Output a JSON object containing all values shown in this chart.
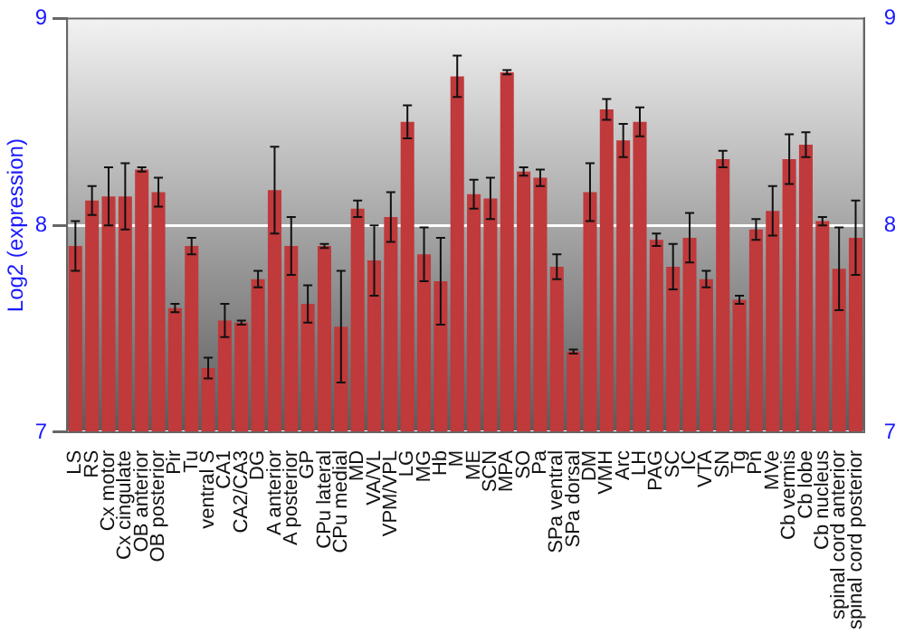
{
  "chart_data": {
    "type": "bar",
    "ylabel": "Log2 (expression)",
    "categories": [
      "LS",
      "RS",
      "Cx motor",
      "Cx cingulate",
      "OB anterior",
      "OB posterior",
      "Pir",
      "Tu",
      "ventral S",
      "CA1",
      "CA2/CA3",
      "DG",
      "A anterior",
      "A posterior",
      "GP",
      "CPu lateral",
      "CPu medial",
      "MD",
      "VA/VL",
      "VPM/VPL",
      "LG",
      "MG",
      "Hb",
      "M",
      "ME",
      "SCN",
      "MPA",
      "SO",
      "Pa",
      "SPa ventral",
      "SPa dorsal",
      "DM",
      "VMH",
      "Arc",
      "LH",
      "PAG",
      "SC",
      "IC",
      "VTA",
      "SN",
      "Tg",
      "Pn",
      "MVe",
      "Cb vermis",
      "Cb lobe",
      "Cb nucleus",
      "spinal cord anterior",
      "spinal cord posterior"
    ],
    "values": [
      7.9,
      8.12,
      8.14,
      8.14,
      8.27,
      8.16,
      7.6,
      7.9,
      7.31,
      7.54,
      7.53,
      7.74,
      8.17,
      7.9,
      7.62,
      7.9,
      7.51,
      8.08,
      7.83,
      8.04,
      8.5,
      7.86,
      7.73,
      8.72,
      8.15,
      8.13,
      8.74,
      8.26,
      8.23,
      7.8,
      7.39,
      8.16,
      8.56,
      8.41,
      8.5,
      7.93,
      7.8,
      7.94,
      7.74,
      8.32,
      7.64,
      7.98,
      8.07,
      8.32,
      8.39,
      8.02,
      7.79,
      7.94
    ],
    "errors": [
      0.12,
      0.07,
      0.14,
      0.16,
      0.01,
      0.07,
      0.02,
      0.04,
      0.05,
      0.08,
      0.01,
      0.04,
      0.21,
      0.14,
      0.09,
      0.01,
      0.27,
      0.04,
      0.17,
      0.12,
      0.08,
      0.13,
      0.21,
      0.1,
      0.07,
      0.1,
      0.01,
      0.02,
      0.04,
      0.06,
      0.01,
      0.14,
      0.05,
      0.08,
      0.07,
      0.03,
      0.11,
      0.12,
      0.04,
      0.04,
      0.02,
      0.05,
      0.12,
      0.12,
      0.06,
      0.02,
      0.2,
      0.18
    ],
    "color": "#c0393b",
    "ylim": [
      7,
      9
    ],
    "yticks": [
      7,
      8,
      9
    ],
    "y2lim": [
      7,
      9
    ],
    "y2ticks": [
      7,
      8,
      9
    ],
    "grid": "y"
  }
}
